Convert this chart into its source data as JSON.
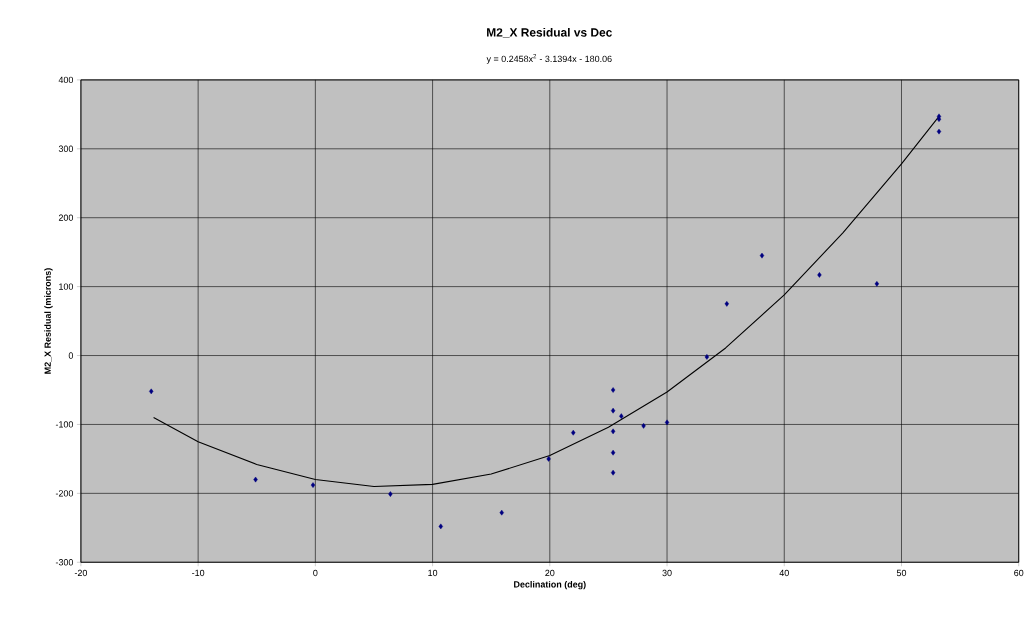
{
  "chart_data": {
    "type": "scatter",
    "title": "M2_X Residual vs Dec",
    "subtitle": "y = 0.2458x$^{2}$ - 3.1394x - 180.06",
    "xlabel": "Declination (deg)",
    "ylabel": "M2_X Residual (microns)",
    "xlim": [
      -20,
      60
    ],
    "xticks": [
      -20,
      -10,
      0,
      10,
      20,
      30,
      40,
      50,
      60
    ],
    "ylim": [
      -300,
      400
    ],
    "yticks": [
      -300,
      -200,
      -100,
      0,
      100,
      200,
      300,
      400
    ],
    "grid": true,
    "legend": false,
    "series": [
      {
        "marker": "diamond",
        "color": "#000080",
        "x": [
          -14,
          -5.1,
          -0.2,
          6.4,
          10.7,
          15.9,
          19.9,
          22,
          25.4,
          25.4,
          25.4,
          25.4,
          25.4,
          26.1,
          28,
          30,
          33.4,
          35.1,
          38.1,
          43,
          47.9,
          53.2,
          53.2,
          53.2
        ],
        "values": [
          -52,
          -180,
          -188,
          -201,
          -248,
          -228,
          -150,
          -112,
          -50,
          -80,
          -110,
          -141,
          -170,
          -88,
          -102,
          -97,
          -2,
          75,
          145,
          117,
          104,
          347,
          343,
          325
        ]
      },
      {
        "type": "line",
        "color": "#000000",
        "line_style": "solid",
        "x": [
          -13.8,
          -10,
          -5,
          0,
          5,
          10,
          15,
          20,
          25,
          30,
          35,
          40,
          45,
          50,
          53.2
        ],
        "values": [
          -90,
          -125,
          -158,
          -180,
          -190,
          -187,
          -172,
          -145,
          -104,
          -53,
          11,
          88,
          178,
          278,
          347
        ]
      }
    ]
  }
}
